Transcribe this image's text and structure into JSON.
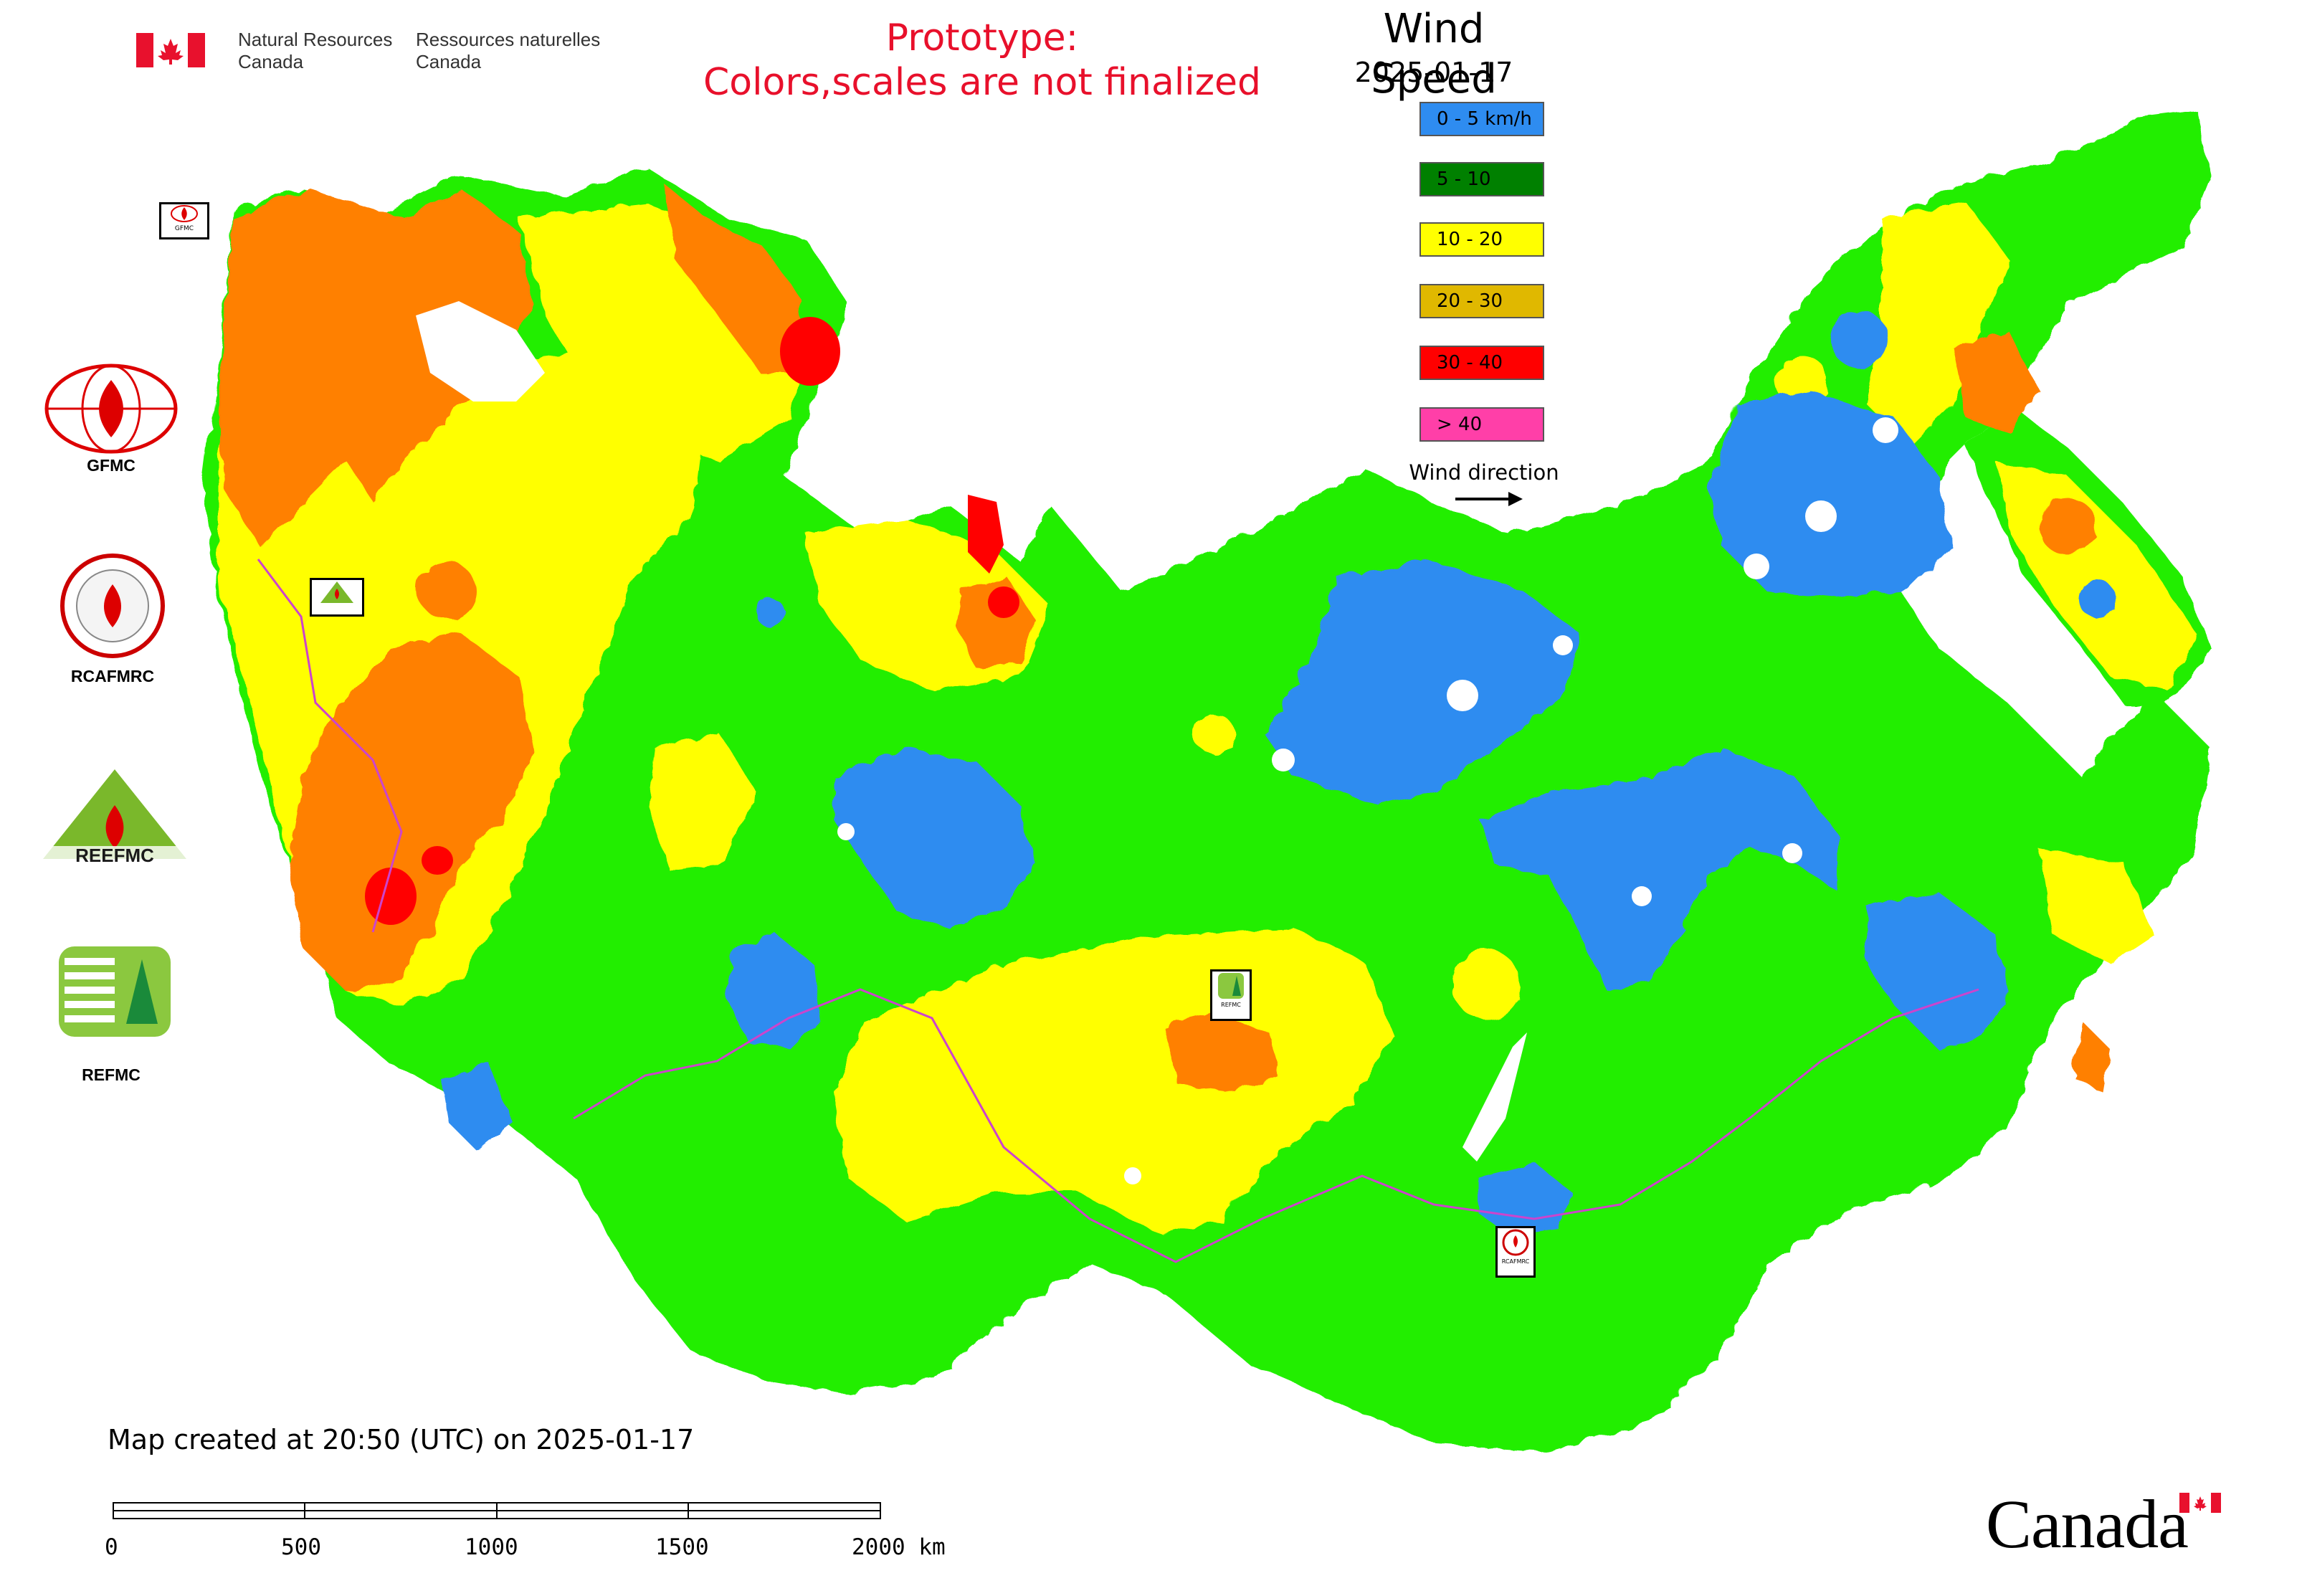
{
  "header": {
    "agency_en": "Natural Resources\nCanada",
    "agency_fr": "Ressources naturelles\nCanada",
    "prototype_line1": "Prototype:",
    "prototype_line2": "Colors,scales are not finalized"
  },
  "legend": {
    "title": "Wind Speed",
    "date": "2025-01-17",
    "items": [
      {
        "label": "0 - 5 km/h",
        "color": "#2e8cf0"
      },
      {
        "label": "5 - 10",
        "color": "#008000"
      },
      {
        "label": "10 - 20",
        "color": "#ffff00"
      },
      {
        "label": "20 - 30",
        "color": "#e0b800"
      },
      {
        "label": "30 - 40",
        "color": "#ff0000"
      },
      {
        "label": "> 40",
        "color": "#ff3fa8"
      }
    ],
    "wind_direction_label": "Wind direction"
  },
  "map_colors": {
    "zone_blue": "#2e8cf0",
    "zone_green": "#22ee00",
    "zone_yellow": "#ffff00",
    "zone_orange": "#ff8000",
    "zone_red": "#ff0000",
    "border": "#cc44cc"
  },
  "organizations": [
    {
      "label": "GFMC",
      "icon": "gfmc-logo"
    },
    {
      "label": "RCAFMRC",
      "icon": "rcafmrc-logo"
    },
    {
      "label": "REEFMC",
      "icon": "reefmc-logo"
    },
    {
      "label": "REFMC",
      "icon": "refmc-logo"
    }
  ],
  "map_markers": [
    {
      "label": "GFMC"
    },
    {
      "label": "REEFMC"
    },
    {
      "label": "REFMC"
    },
    {
      "label": "RCAFMRC"
    }
  ],
  "footer": {
    "created": "Map created at 20:50 (UTC) on 2025-01-17"
  },
  "scale_bar": {
    "ticks": [
      "0",
      "500",
      "1000",
      "1500",
      "2000 km"
    ]
  },
  "wordmark": "Canada"
}
